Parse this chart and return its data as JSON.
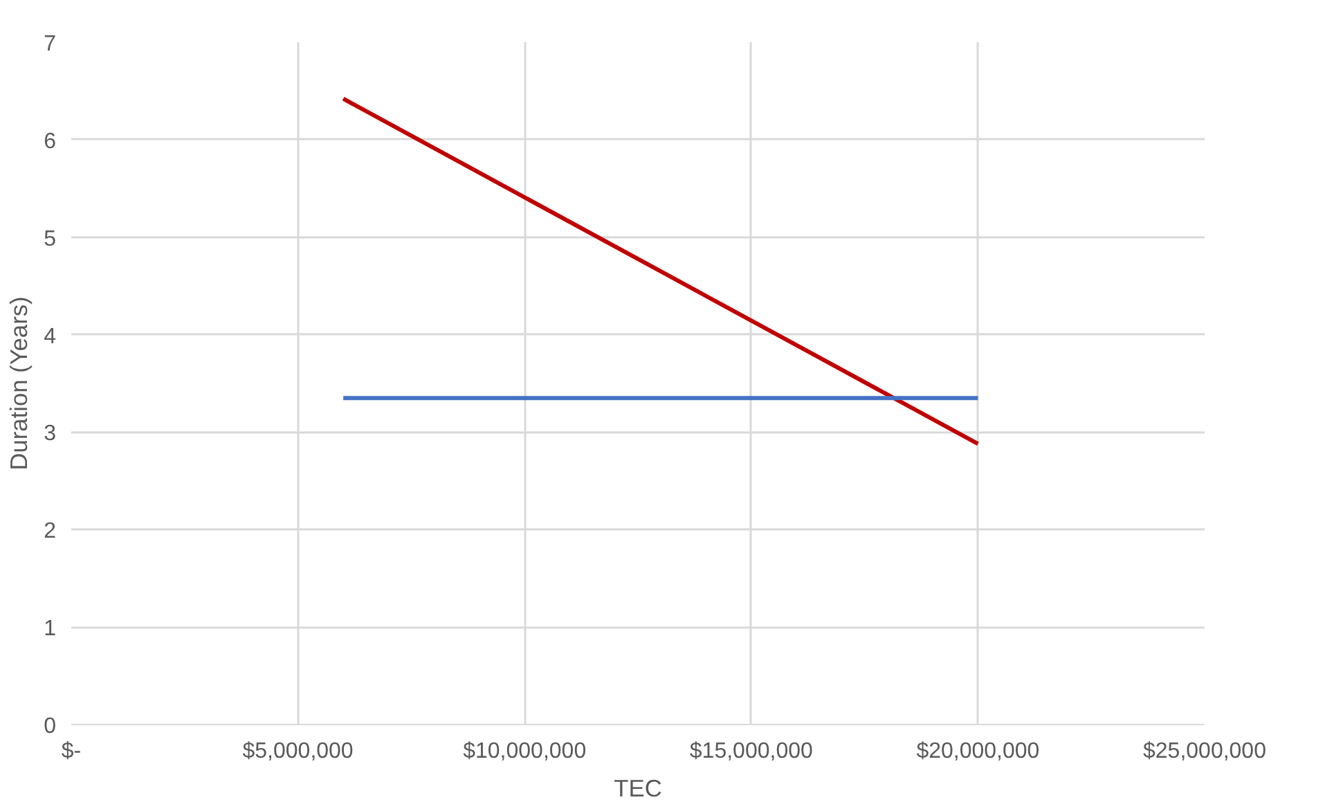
{
  "chart_data": {
    "type": "line",
    "xlabel": "TEC",
    "ylabel": "Duration (Years)",
    "series": [
      {
        "color": "#c00000",
        "values": [
          6.42,
          2.88
        ]
      },
      {
        "color": "#4472c4",
        "values": [
          3.35,
          3.35
        ]
      }
    ],
    "x": [
      6000000,
      20000000
    ],
    "xlim": [
      0,
      25000000
    ],
    "ylim": [
      0,
      7
    ],
    "xticks": [
      {
        "value": 0,
        "label": "$-"
      },
      {
        "value": 5000000,
        "label": "$5,000,000"
      },
      {
        "value": 10000000,
        "label": "$10,000,000"
      },
      {
        "value": 15000000,
        "label": "$15,000,000"
      },
      {
        "value": 20000000,
        "label": "$20,000,000"
      },
      {
        "value": 25000000,
        "label": "$25,000,000"
      }
    ],
    "yticks": [
      0,
      1,
      2,
      3,
      4,
      5,
      6,
      7
    ],
    "grid": true,
    "marker": "none",
    "line_style": "solid"
  }
}
